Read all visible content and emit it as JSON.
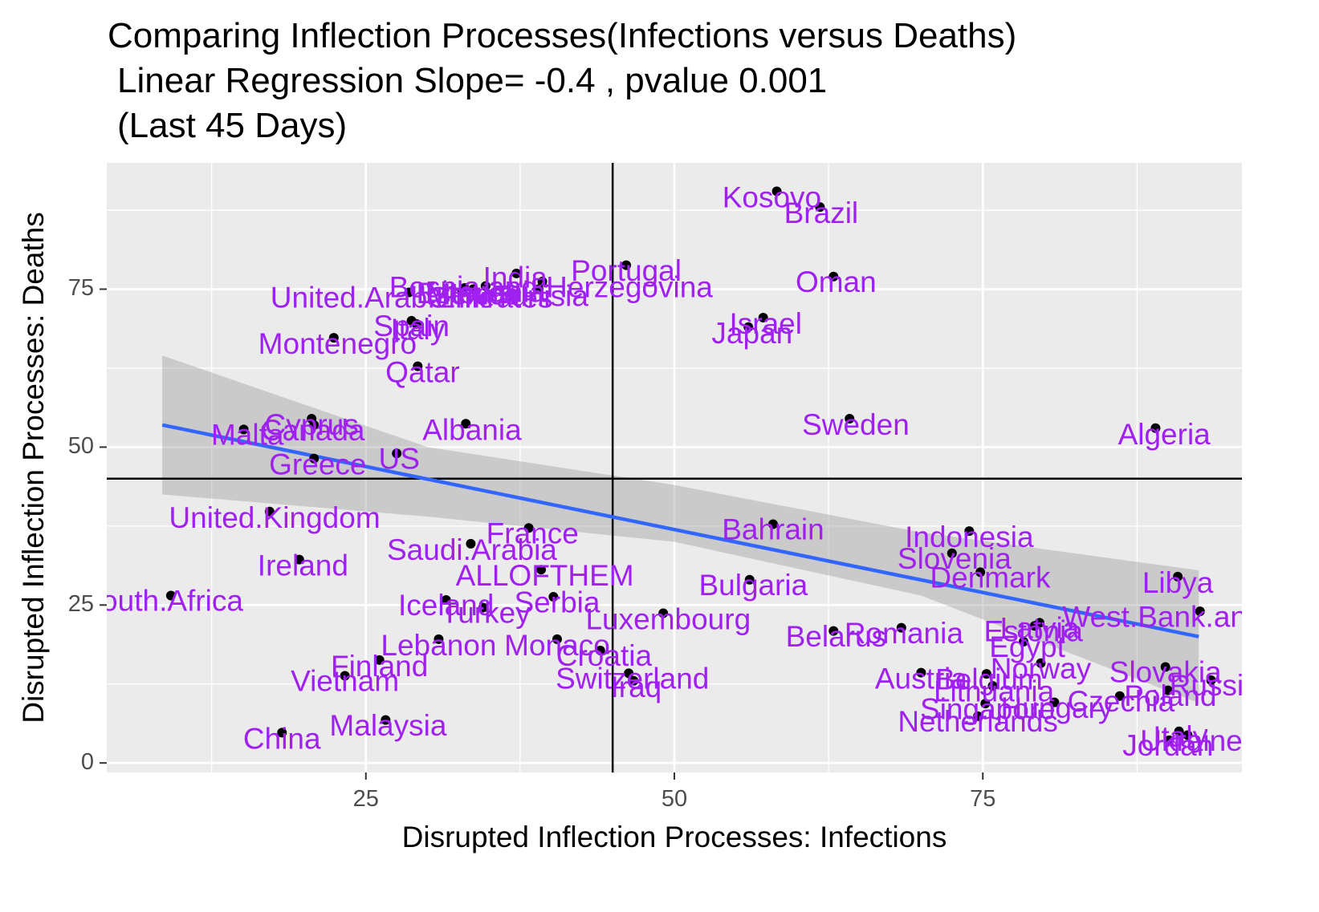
{
  "colors": {
    "panel_bg": "#EBEBEB",
    "grid": "#FFFFFF",
    "point": "#000000",
    "label": "#A020F0",
    "regression_line": "#3366FF",
    "confidence_band": "#999999",
    "reference_line": "#000000"
  },
  "chart_data": {
    "type": "scatter",
    "title": "Comparing Inflection Processes(Infections versus Deaths)",
    "subtitle_lines": [
      "Linear Regression Slope= -0.4 , pvalue 0.001",
      "(Last 45 Days)"
    ],
    "xlabel": "Disrupted Inflection Processes: Infections",
    "ylabel": "Disrupted Inflection Processes: Deaths",
    "xlim": [
      4,
      96
    ],
    "ylim": [
      -1.5,
      95
    ],
    "x_ticks": [
      25,
      50,
      75
    ],
    "y_ticks": [
      0,
      25,
      50,
      75
    ],
    "grid": true,
    "reference_lines": {
      "vertical_x": 45,
      "horizontal_y": 45
    },
    "regression": {
      "slope": -0.4,
      "pvalue": 0.001,
      "x_start": 8.5,
      "x_end": 92.5,
      "y_start": 53.5,
      "y_end": 20,
      "band": [
        {
          "x": 8.5,
          "lower": 42.5,
          "upper": 64.5
        },
        {
          "x": 30,
          "lower": 39,
          "upper": 50
        },
        {
          "x": 50,
          "lower": 35,
          "upper": 44
        },
        {
          "x": 70,
          "lower": 26.5,
          "upper": 36.5
        },
        {
          "x": 92.5,
          "lower": 9.5,
          "upper": 30.5
        }
      ]
    },
    "points": [
      {
        "label": "Kosovo",
        "x": 58.3,
        "y": 90.5
      },
      {
        "label": "Brazil",
        "x": 61.8,
        "y": 88.0
      },
      {
        "label": "Oman",
        "x": 62.9,
        "y": 77.0
      },
      {
        "label": "Portugal",
        "x": 46.1,
        "y": 78.8
      },
      {
        "label": "India",
        "x": 37.2,
        "y": 77.5
      },
      {
        "label": "Bosnia.and.Herzegovina",
        "x": 39.3,
        "y": 76.2
      },
      {
        "label": "Lithuania",
        "x": 34.7,
        "y": 75.5
      },
      {
        "label": "Estonia",
        "x": 33.0,
        "y": 75.2
      },
      {
        "label": "Tunisia",
        "x": 39.0,
        "y": 75.0
      },
      {
        "label": "Mexico",
        "x": 33.7,
        "y": 75.0
      },
      {
        "label": "Chile",
        "x": 32.8,
        "y": 74.5
      },
      {
        "label": "United.Arab.Emirates",
        "x": 28.5,
        "y": 74.5
      },
      {
        "label": "Israel",
        "x": 57.2,
        "y": 70.5
      },
      {
        "label": "Japan",
        "x": 56.0,
        "y": 69.0
      },
      {
        "label": "Spain",
        "x": 28.7,
        "y": 70.0
      },
      {
        "label": "Italy",
        "x": 29.1,
        "y": 69.5
      },
      {
        "label": "Montenegro",
        "x": 22.4,
        "y": 67.3
      },
      {
        "label": "Qatar",
        "x": 29.2,
        "y": 62.8
      },
      {
        "label": "Sweden",
        "x": 64.2,
        "y": 54.5
      },
      {
        "label": "Algeria",
        "x": 89.0,
        "y": 53.0
      },
      {
        "label": "Cyprus",
        "x": 20.6,
        "y": 54.5
      },
      {
        "label": "Canada",
        "x": 20.8,
        "y": 53.5
      },
      {
        "label": "Malta",
        "x": 15.1,
        "y": 52.8
      },
      {
        "label": "Albania",
        "x": 33.1,
        "y": 53.7
      },
      {
        "label": "US",
        "x": 27.5,
        "y": 49.0
      },
      {
        "label": "Greece",
        "x": 20.8,
        "y": 48.2
      },
      {
        "label": "United.Kingdom",
        "x": 17.2,
        "y": 39.8
      },
      {
        "label": "France",
        "x": 38.2,
        "y": 37.2
      },
      {
        "label": "Bahrain",
        "x": 58.0,
        "y": 37.8
      },
      {
        "label": "Indonesia",
        "x": 73.9,
        "y": 36.7
      },
      {
        "label": "Saudi.Arabia",
        "x": 33.5,
        "y": 34.7
      },
      {
        "label": "Slovenia",
        "x": 72.5,
        "y": 33.2
      },
      {
        "label": "Ireland",
        "x": 19.6,
        "y": 32.2
      },
      {
        "label": "ALLOFTHEM",
        "x": 39.2,
        "y": 30.6
      },
      {
        "label": "Denmark",
        "x": 74.8,
        "y": 30.2
      },
      {
        "label": "Libya",
        "x": 90.8,
        "y": 29.5
      },
      {
        "label": "Bulgaria",
        "x": 56.1,
        "y": 29.0
      },
      {
        "label": "South.Africa",
        "x": 9.2,
        "y": 26.5
      },
      {
        "label": "Iceland",
        "x": 31.5,
        "y": 25.8
      },
      {
        "label": "Serbia",
        "x": 40.2,
        "y": 26.3
      },
      {
        "label": "Turkey",
        "x": 34.5,
        "y": 24.6
      },
      {
        "label": "West.Bank.and.Gaza",
        "x": 92.6,
        "y": 24.0
      },
      {
        "label": "Luxembourg",
        "x": 49.1,
        "y": 23.7
      },
      {
        "label": "Latvia",
        "x": 79.6,
        "y": 22.2
      },
      {
        "label": "Estonia",
        "x": 79.2,
        "y": 21.7
      },
      {
        "label": "Romania",
        "x": 68.4,
        "y": 21.4
      },
      {
        "label": "Belarus",
        "x": 62.9,
        "y": 20.9
      },
      {
        "label": "Lebanon",
        "x": 30.9,
        "y": 19.6
      },
      {
        "label": "Monaco",
        "x": 40.5,
        "y": 19.6
      },
      {
        "label": "Egypt",
        "x": 78.3,
        "y": 19.2
      },
      {
        "label": "Croatia",
        "x": 44.0,
        "y": 17.8
      },
      {
        "label": "Finland",
        "x": 26.1,
        "y": 16.3
      },
      {
        "label": "Norway",
        "x": 79.7,
        "y": 15.8
      },
      {
        "label": "Slovakia",
        "x": 89.8,
        "y": 15.2
      },
      {
        "label": "Switzerland",
        "x": 46.3,
        "y": 14.2
      },
      {
        "label": "Austria",
        "x": 70.0,
        "y": 14.3
      },
      {
        "label": "Belgium",
        "x": 75.3,
        "y": 14.1
      },
      {
        "label": "Vietnam",
        "x": 23.3,
        "y": 13.8
      },
      {
        "label": "Russia",
        "x": 93.5,
        "y": 13.1
      },
      {
        "label": "Iraq",
        "x": 46.7,
        "y": 13.0
      },
      {
        "label": "Lithuania",
        "x": 75.8,
        "y": 12.2
      },
      {
        "label": "Poland",
        "x": 90.0,
        "y": 11.5
      },
      {
        "label": "Czechia",
        "x": 86.1,
        "y": 10.6
      },
      {
        "label": "Singapore",
        "x": 75.2,
        "y": 9.4
      },
      {
        "label": "Hungary",
        "x": 80.8,
        "y": 9.6
      },
      {
        "label": "Netherlands",
        "x": 74.6,
        "y": 7.4
      },
      {
        "label": "Malaysia",
        "x": 26.6,
        "y": 6.8
      },
      {
        "label": "China",
        "x": 18.2,
        "y": 4.8
      },
      {
        "label": "Italy",
        "x": 90.9,
        "y": 5.0
      },
      {
        "label": "Ukraine",
        "x": 91.6,
        "y": 4.4
      },
      {
        "label": "Jordan",
        "x": 90.1,
        "y": 3.6
      }
    ],
    "labels": [
      {
        "text": "Kosovo",
        "x": 57.9,
        "y": 89.2
      },
      {
        "text": "Brazil",
        "x": 61.9,
        "y": 86.7
      },
      {
        "text": "Oman",
        "x": 63.1,
        "y": 75.8
      },
      {
        "text": "Portugal",
        "x": 46.1,
        "y": 77.6
      },
      {
        "text": "India",
        "x": 37.1,
        "y": 76.5
      },
      {
        "text": "Bosnia.and.Herzegovina",
        "x": 40.0,
        "y": 75.0
      },
      {
        "text": "Lithuania",
        "x": 34.7,
        "y": 74.2
      },
      {
        "text": "Estonia",
        "x": 33.1,
        "y": 74.0
      },
      {
        "text": "Tunisia",
        "x": 39.2,
        "y": 73.6
      },
      {
        "text": "Mexico",
        "x": 33.7,
        "y": 73.8
      },
      {
        "text": "Chile",
        "x": 32.7,
        "y": 73.3
      },
      {
        "text": "United.Arab.Emirates",
        "x": 28.7,
        "y": 73.3
      },
      {
        "text": "Israel",
        "x": 57.4,
        "y": 69.2
      },
      {
        "text": "Japan",
        "x": 56.3,
        "y": 67.7
      },
      {
        "text": "Spain",
        "x": 28.7,
        "y": 68.8
      },
      {
        "text": "Italy",
        "x": 29.2,
        "y": 68.3
      },
      {
        "text": "Montenegro",
        "x": 22.7,
        "y": 66.0
      },
      {
        "text": "Qatar",
        "x": 29.6,
        "y": 61.5
      },
      {
        "text": "Sweden",
        "x": 64.7,
        "y": 53.2
      },
      {
        "text": "Algeria",
        "x": 89.7,
        "y": 51.7
      },
      {
        "text": "Cyprus",
        "x": 20.6,
        "y": 53.2
      },
      {
        "text": "Canada",
        "x": 20.7,
        "y": 52.3
      },
      {
        "text": "Malta",
        "x": 15.4,
        "y": 51.6
      },
      {
        "text": "Albania",
        "x": 33.6,
        "y": 52.4
      },
      {
        "text": "US",
        "x": 27.7,
        "y": 47.8
      },
      {
        "text": "Greece",
        "x": 21.1,
        "y": 46.9
      },
      {
        "text": "United.Kingdom",
        "x": 17.6,
        "y": 38.5
      },
      {
        "text": "France",
        "x": 38.5,
        "y": 36.0
      },
      {
        "text": "Bahrain",
        "x": 58.0,
        "y": 36.6
      },
      {
        "text": "Indonesia",
        "x": 73.9,
        "y": 35.4
      },
      {
        "text": "Saudi.Arabia",
        "x": 33.6,
        "y": 33.4
      },
      {
        "text": "Slovenia",
        "x": 72.7,
        "y": 32.0
      },
      {
        "text": "Ireland",
        "x": 19.9,
        "y": 30.9
      },
      {
        "text": "ALLOFTHEM",
        "x": 39.5,
        "y": 29.3
      },
      {
        "text": "Denmark",
        "x": 75.6,
        "y": 29.0
      },
      {
        "text": "Libya",
        "x": 90.8,
        "y": 28.2
      },
      {
        "text": "Bulgaria",
        "x": 56.4,
        "y": 27.8
      },
      {
        "text": "South.Africa",
        "x": 8.5,
        "y": 25.3
      },
      {
        "text": "Iceland",
        "x": 31.5,
        "y": 24.6
      },
      {
        "text": "Serbia",
        "x": 40.5,
        "y": 25.1
      },
      {
        "text": "Turkey",
        "x": 34.7,
        "y": 23.4
      },
      {
        "text": "West.Bank.and.Gaza",
        "x": 92.8,
        "y": 22.8
      },
      {
        "text": "Luxembourg",
        "x": 49.5,
        "y": 22.4
      },
      {
        "text": "Latvia",
        "x": 79.6,
        "y": 21.0
      },
      {
        "text": "Estonia",
        "x": 79.1,
        "y": 20.5
      },
      {
        "text": "Romania",
        "x": 68.6,
        "y": 20.2
      },
      {
        "text": "Belarus",
        "x": 63.1,
        "y": 19.7
      },
      {
        "text": "Lebanon",
        "x": 30.9,
        "y": 18.3
      },
      {
        "text": "Monaco",
        "x": 40.5,
        "y": 18.3
      },
      {
        "text": "Egypt",
        "x": 78.6,
        "y": 18.0
      },
      {
        "text": "Croatia",
        "x": 44.3,
        "y": 16.6
      },
      {
        "text": "Finland",
        "x": 26.1,
        "y": 15.0
      },
      {
        "text": "Norway",
        "x": 79.7,
        "y": 14.6
      },
      {
        "text": "Slovakia",
        "x": 89.8,
        "y": 14.0
      },
      {
        "text": "Switzerland",
        "x": 46.6,
        "y": 13.0
      },
      {
        "text": "Austria",
        "x": 70.0,
        "y": 13.0
      },
      {
        "text": "Belgium",
        "x": 75.5,
        "y": 12.9
      },
      {
        "text": "Vietnam",
        "x": 23.3,
        "y": 12.6
      },
      {
        "text": "Russia",
        "x": 93.8,
        "y": 11.9
      },
      {
        "text": "Iraq",
        "x": 46.9,
        "y": 11.7
      },
      {
        "text": "Lithuania",
        "x": 75.9,
        "y": 11.0
      },
      {
        "text": "Poland",
        "x": 90.2,
        "y": 10.3
      },
      {
        "text": "Czechia",
        "x": 86.2,
        "y": 9.4
      },
      {
        "text": "Singapore",
        "x": 75.4,
        "y": 8.2
      },
      {
        "text": "Hungary",
        "x": 81.0,
        "y": 8.4
      },
      {
        "text": "Netherlands",
        "x": 74.6,
        "y": 6.2
      },
      {
        "text": "Malaysia",
        "x": 26.8,
        "y": 5.6
      },
      {
        "text": "China",
        "x": 18.2,
        "y": 3.5
      },
      {
        "text": "Italy",
        "x": 91.0,
        "y": 3.8
      },
      {
        "text": "Ukraine",
        "x": 91.9,
        "y": 3.2
      },
      {
        "text": "Jordan",
        "x": 90.0,
        "y": 2.4
      }
    ]
  }
}
